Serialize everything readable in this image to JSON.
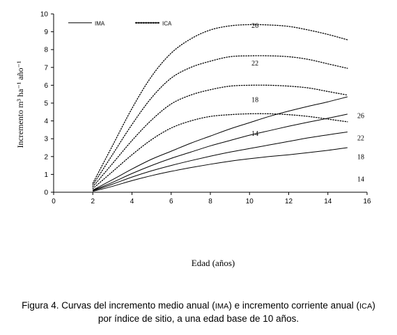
{
  "chart_data": {
    "type": "line",
    "x_label": "Edad  (años)",
    "y_label": "Incremento m³ ha⁻¹ año⁻¹",
    "x_range": [
      0,
      16
    ],
    "y_range": [
      0,
      10
    ],
    "x_ticks": [
      "0",
      "2",
      "4",
      "6",
      "8",
      "10",
      "12",
      "14",
      "16"
    ],
    "y_ticks": [
      "0",
      "1",
      "2",
      "3",
      "4",
      "5",
      "6",
      "7",
      "8",
      "9",
      "10"
    ],
    "legend": {
      "placement": "top-left",
      "entries": [
        {
          "label": "IMA",
          "style": "solid"
        },
        {
          "label": "ICA",
          "style": "dotted"
        }
      ]
    },
    "series": [
      {
        "group": "IMA",
        "site_index": "26",
        "x": [
          2,
          3,
          4,
          5,
          6,
          7,
          8,
          9,
          10,
          11,
          12,
          13,
          14,
          15
        ],
        "y": [
          0.12,
          0.7,
          1.3,
          1.85,
          2.3,
          2.75,
          3.15,
          3.55,
          3.9,
          4.25,
          4.55,
          4.82,
          5.07,
          5.35
        ]
      },
      {
        "group": "IMA",
        "site_index": "22",
        "x": [
          2,
          3,
          4,
          5,
          6,
          7,
          8,
          9,
          10,
          11,
          12,
          13,
          14,
          15
        ],
        "y": [
          0.1,
          0.55,
          1.05,
          1.5,
          1.9,
          2.25,
          2.6,
          2.9,
          3.2,
          3.45,
          3.7,
          3.93,
          4.15,
          4.38
        ]
      },
      {
        "group": "IMA",
        "site_index": "18",
        "x": [
          2,
          3,
          4,
          5,
          6,
          7,
          8,
          9,
          10,
          11,
          12,
          13,
          14,
          15
        ],
        "y": [
          0.08,
          0.45,
          0.85,
          1.2,
          1.5,
          1.77,
          2.02,
          2.25,
          2.45,
          2.65,
          2.85,
          3.05,
          3.22,
          3.38
        ]
      },
      {
        "group": "IMA",
        "site_index": "14",
        "x": [
          2,
          3,
          4,
          5,
          6,
          7,
          8,
          9,
          10,
          11,
          12,
          13,
          14,
          15
        ],
        "y": [
          0.05,
          0.33,
          0.65,
          0.93,
          1.17,
          1.38,
          1.57,
          1.74,
          1.88,
          2.0,
          2.1,
          2.22,
          2.35,
          2.5
        ]
      },
      {
        "group": "ICA",
        "site_index": "26",
        "x": [
          2,
          3,
          4,
          5,
          6,
          7,
          8,
          9,
          10,
          11,
          12,
          13,
          14,
          15
        ],
        "y": [
          0.5,
          2.6,
          4.7,
          6.5,
          7.8,
          8.6,
          9.1,
          9.33,
          9.4,
          9.38,
          9.3,
          9.1,
          8.85,
          8.55
        ]
      },
      {
        "group": "ICA",
        "site_index": "22",
        "x": [
          2,
          3,
          4,
          5,
          6,
          7,
          8,
          9,
          10,
          11,
          12,
          13,
          14,
          15
        ],
        "y": [
          0.4,
          2.1,
          3.8,
          5.3,
          6.4,
          7.0,
          7.35,
          7.6,
          7.65,
          7.65,
          7.6,
          7.45,
          7.2,
          6.95
        ]
      },
      {
        "group": "ICA",
        "site_index": "18",
        "x": [
          2,
          3,
          4,
          5,
          6,
          7,
          8,
          9,
          10,
          11,
          12,
          13,
          14,
          15
        ],
        "y": [
          0.3,
          1.6,
          2.9,
          4.05,
          4.95,
          5.45,
          5.75,
          5.95,
          6.0,
          6.0,
          5.95,
          5.85,
          5.65,
          5.45
        ]
      },
      {
        "group": "ICA",
        "site_index": "14",
        "x": [
          2,
          3,
          4,
          5,
          6,
          7,
          8,
          9,
          10,
          11,
          12,
          13,
          14,
          15
        ],
        "y": [
          0.2,
          1.15,
          2.1,
          2.95,
          3.6,
          4.0,
          4.25,
          4.35,
          4.4,
          4.4,
          4.35,
          4.25,
          4.1,
          3.95
        ]
      }
    ],
    "annotations": [
      {
        "text": "26",
        "x": 10.1,
        "y": 9.35
      },
      {
        "text": "22",
        "x": 10.1,
        "y": 7.25
      },
      {
        "text": "18",
        "x": 10.1,
        "y": 5.2
      },
      {
        "text": "14",
        "x": 10.1,
        "y": 3.3
      },
      {
        "text": "26",
        "x": 15.5,
        "y": 4.3
      },
      {
        "text": "22",
        "x": 15.5,
        "y": 3.05
      },
      {
        "text": "18",
        "x": 15.5,
        "y": 2.0
      },
      {
        "text": "14",
        "x": 15.5,
        "y": 0.75
      }
    ]
  },
  "caption": {
    "line1_pre": "Figura 4. Curvas del incremento medio anual (",
    "line1_ima": "IMA",
    "line1_mid": ") e incremento corriente anual (",
    "line1_ica": "ICA",
    "line1_post": ")",
    "line2": "por índice de sitio, a una edad base de 10 años."
  }
}
